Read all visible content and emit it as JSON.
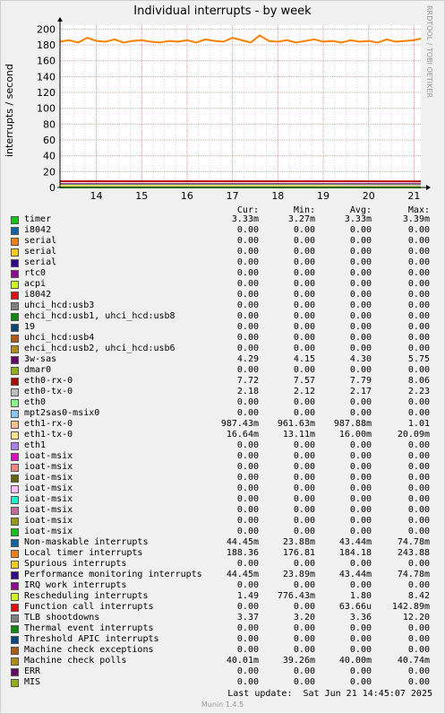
{
  "title": "Individual interrupts - by week",
  "y_axis_label": "interrupts / second",
  "watermark": "RRDTOOL / TOBI OETIKER",
  "columns": {
    "cur": "Cur:",
    "min": "Min:",
    "avg": "Avg:",
    "max": "Max:"
  },
  "last_update": "Last update:  Sat Jun 21 14:45:07 2025",
  "version": "Munin 1.4.5",
  "legend": [
    {
      "name": "timer",
      "color": "#00cc00",
      "cur": "3.33m",
      "min": "3.27m",
      "avg": "3.33m",
      "max": "3.39m"
    },
    {
      "name": "i8042",
      "color": "#0066b3",
      "cur": "0.00",
      "min": "0.00",
      "avg": "0.00",
      "max": "0.00"
    },
    {
      "name": "serial",
      "color": "#ff8000",
      "cur": "0.00",
      "min": "0.00",
      "avg": "0.00",
      "max": "0.00"
    },
    {
      "name": "serial",
      "color": "#ffcc00",
      "cur": "0.00",
      "min": "0.00",
      "avg": "0.00",
      "max": "0.00"
    },
    {
      "name": "serial",
      "color": "#330099",
      "cur": "0.00",
      "min": "0.00",
      "avg": "0.00",
      "max": "0.00"
    },
    {
      "name": "rtc0",
      "color": "#990099",
      "cur": "0.00",
      "min": "0.00",
      "avg": "0.00",
      "max": "0.00"
    },
    {
      "name": "acpi",
      "color": "#ccff00",
      "cur": "0.00",
      "min": "0.00",
      "avg": "0.00",
      "max": "0.00"
    },
    {
      "name": "i8042",
      "color": "#ff0000",
      "cur": "0.00",
      "min": "0.00",
      "avg": "0.00",
      "max": "0.00"
    },
    {
      "name": "uhci_hcd:usb3",
      "color": "#808080",
      "cur": "0.00",
      "min": "0.00",
      "avg": "0.00",
      "max": "0.00"
    },
    {
      "name": "ehci_hcd:usb1, uhci_hcd:usb8",
      "color": "#008f00",
      "cur": "0.00",
      "min": "0.00",
      "avg": "0.00",
      "max": "0.00"
    },
    {
      "name": "19",
      "color": "#00487d",
      "cur": "0.00",
      "min": "0.00",
      "avg": "0.00",
      "max": "0.00"
    },
    {
      "name": "uhci_hcd:usb4",
      "color": "#b35a00",
      "cur": "0.00",
      "min": "0.00",
      "avg": "0.00",
      "max": "0.00"
    },
    {
      "name": "ehci_hcd:usb2, uhci_hcd:usb6",
      "color": "#b38f00",
      "cur": "0.00",
      "min": "0.00",
      "avg": "0.00",
      "max": "0.00"
    },
    {
      "name": "3w-sas",
      "color": "#6b006b",
      "cur": "4.29",
      "min": "4.15",
      "avg": "4.30",
      "max": "5.75"
    },
    {
      "name": "dmar0",
      "color": "#8fb300",
      "cur": "0.00",
      "min": "0.00",
      "avg": "0.00",
      "max": "0.00"
    },
    {
      "name": "eth0-rx-0",
      "color": "#b30000",
      "cur": "7.72",
      "min": "7.57",
      "avg": "7.79",
      "max": "8.06"
    },
    {
      "name": "eth0-tx-0",
      "color": "#bebebe",
      "cur": "2.18",
      "min": "2.12",
      "avg": "2.17",
      "max": "2.23"
    },
    {
      "name": "eth0",
      "color": "#80ff80",
      "cur": "0.00",
      "min": "0.00",
      "avg": "0.00",
      "max": "0.00"
    },
    {
      "name": "mpt2sas0-msix0",
      "color": "#80c9ff",
      "cur": "0.00",
      "min": "0.00",
      "avg": "0.00",
      "max": "0.00"
    },
    {
      "name": "eth1-rx-0",
      "color": "#ffc080",
      "cur": "987.43m",
      "min": "961.63m",
      "avg": "987.88m",
      "max": "1.01"
    },
    {
      "name": "eth1-tx-0",
      "color": "#ffe680",
      "cur": "16.64m",
      "min": "13.11m",
      "avg": "16.00m",
      "max": "20.09m"
    },
    {
      "name": "eth1",
      "color": "#aa80ff",
      "cur": "0.00",
      "min": "0.00",
      "avg": "0.00",
      "max": "0.00"
    },
    {
      "name": "ioat-msix",
      "color": "#ee00cc",
      "cur": "0.00",
      "min": "0.00",
      "avg": "0.00",
      "max": "0.00"
    },
    {
      "name": "ioat-msix",
      "color": "#ff8080",
      "cur": "0.00",
      "min": "0.00",
      "avg": "0.00",
      "max": "0.00"
    },
    {
      "name": "ioat-msix",
      "color": "#666600",
      "cur": "0.00",
      "min": "0.00",
      "avg": "0.00",
      "max": "0.00"
    },
    {
      "name": "ioat-msix",
      "color": "#ffbfff",
      "cur": "0.00",
      "min": "0.00",
      "avg": "0.00",
      "max": "0.00"
    },
    {
      "name": "ioat-msix",
      "color": "#00ffcc",
      "cur": "0.00",
      "min": "0.00",
      "avg": "0.00",
      "max": "0.00"
    },
    {
      "name": "ioat-msix",
      "color": "#cc6699",
      "cur": "0.00",
      "min": "0.00",
      "avg": "0.00",
      "max": "0.00"
    },
    {
      "name": "ioat-msix",
      "color": "#999900",
      "cur": "0.00",
      "min": "0.00",
      "avg": "0.00",
      "max": "0.00"
    },
    {
      "name": "ioat-msix",
      "color": "#00cc00",
      "cur": "0.00",
      "min": "0.00",
      "avg": "0.00",
      "max": "0.00"
    },
    {
      "name": "Non-maskable interrupts",
      "color": "#0066b3",
      "cur": "44.45m",
      "min": "23.88m",
      "avg": "43.44m",
      "max": "74.78m"
    },
    {
      "name": "Local timer interrupts",
      "color": "#ff8000",
      "cur": "188.36",
      "min": "176.81",
      "avg": "184.18",
      "max": "243.88"
    },
    {
      "name": "Spurious interrupts",
      "color": "#ffcc00",
      "cur": "0.00",
      "min": "0.00",
      "avg": "0.00",
      "max": "0.00"
    },
    {
      "name": "Performance monitoring interrupts",
      "color": "#330099",
      "cur": "44.45m",
      "min": "23.89m",
      "avg": "43.44m",
      "max": "74.78m"
    },
    {
      "name": "IRQ work interrupts",
      "color": "#990099",
      "cur": "0.00",
      "min": "0.00",
      "avg": "0.00",
      "max": "0.00"
    },
    {
      "name": "Rescheduling interrupts",
      "color": "#ccff00",
      "cur": "1.49",
      "min": "776.43m",
      "avg": "1.80",
      "max": "8.42"
    },
    {
      "name": "Function call interrupts",
      "color": "#ff0000",
      "cur": "0.00",
      "min": "0.00",
      "avg": "63.66u",
      "max": "142.89m"
    },
    {
      "name": "TLB shootdowns",
      "color": "#808080",
      "cur": "3.37",
      "min": "3.20",
      "avg": "3.36",
      "max": "12.20"
    },
    {
      "name": "Thermal event interrupts",
      "color": "#008f00",
      "cur": "0.00",
      "min": "0.00",
      "avg": "0.00",
      "max": "0.00"
    },
    {
      "name": "Threshold APIC interrupts",
      "color": "#00487d",
      "cur": "0.00",
      "min": "0.00",
      "avg": "0.00",
      "max": "0.00"
    },
    {
      "name": "Machine check exceptions",
      "color": "#b35a00",
      "cur": "0.00",
      "min": "0.00",
      "avg": "0.00",
      "max": "0.00"
    },
    {
      "name": "Machine check polls",
      "color": "#b38f00",
      "cur": "40.01m",
      "min": "39.26m",
      "avg": "40.00m",
      "max": "40.74m"
    },
    {
      "name": "ERR",
      "color": "#6b006b",
      "cur": "0.00",
      "min": "0.00",
      "avg": "0.00",
      "max": "0.00"
    },
    {
      "name": "MIS",
      "color": "#8fb300",
      "cur": "0.00",
      "min": "0.00",
      "avg": "0.00",
      "max": "0.00"
    }
  ],
  "chart_data": {
    "type": "line",
    "title": "Individual interrupts - by week",
    "ylabel": "interrupts / second",
    "xlabel": "",
    "x_ticks": [
      "14",
      "15",
      "16",
      "17",
      "18",
      "19",
      "20",
      "21"
    ],
    "y_ticks": [
      0,
      20,
      40,
      60,
      80,
      100,
      120,
      140,
      160,
      180,
      200
    ],
    "ylim": [
      0,
      205
    ],
    "x_range": [
      13.2,
      21.15
    ],
    "grid": true,
    "series": [
      {
        "name": "Local timer interrupts",
        "color": "#ff8000",
        "x": [
          13.2,
          13.4,
          13.6,
          13.8,
          14.0,
          14.2,
          14.4,
          14.6,
          14.8,
          15.0,
          15.2,
          15.4,
          15.6,
          15.8,
          16.0,
          16.2,
          16.4,
          16.6,
          16.8,
          17.0,
          17.2,
          17.4,
          17.6,
          17.8,
          18.0,
          18.2,
          18.4,
          18.6,
          18.8,
          19.0,
          19.2,
          19.4,
          19.6,
          19.8,
          20.0,
          20.2,
          20.4,
          20.6,
          20.8,
          21.0,
          21.15
        ],
        "values": [
          184,
          186,
          183,
          189,
          185,
          184,
          187,
          183,
          185,
          186,
          184,
          183,
          185,
          184,
          186,
          183,
          187,
          185,
          184,
          189,
          186,
          183,
          192,
          185,
          184,
          186,
          183,
          185,
          187,
          184,
          185,
          183,
          186,
          184,
          185,
          183,
          187,
          184,
          185,
          186,
          188
        ]
      },
      {
        "name": "eth0-rx-0",
        "color": "#b30000",
        "x": [
          13.2,
          21.15
        ],
        "values": [
          7.8,
          7.7
        ]
      },
      {
        "name": "3w-sas",
        "color": "#6b006b",
        "x": [
          13.2,
          21.15
        ],
        "values": [
          4.3,
          4.3
        ]
      },
      {
        "name": "TLB shootdowns",
        "color": "#808080",
        "x": [
          13.2,
          21.15
        ],
        "values": [
          3.4,
          3.4
        ]
      },
      {
        "name": "eth0-tx-0",
        "color": "#bebebe",
        "x": [
          13.2,
          21.15
        ],
        "values": [
          2.2,
          2.2
        ]
      },
      {
        "name": "Rescheduling interrupts",
        "color": "#ccff00",
        "x": [
          13.2,
          21.15
        ],
        "values": [
          1.8,
          1.5
        ]
      },
      {
        "name": "eth1-rx-0",
        "color": "#ffc080",
        "x": [
          13.2,
          21.15
        ],
        "values": [
          0.99,
          0.99
        ]
      },
      {
        "name": "timer",
        "color": "#00cc00",
        "x": [
          13.2,
          21.15
        ],
        "values": [
          0.0033,
          0.0033
        ]
      }
    ]
  }
}
